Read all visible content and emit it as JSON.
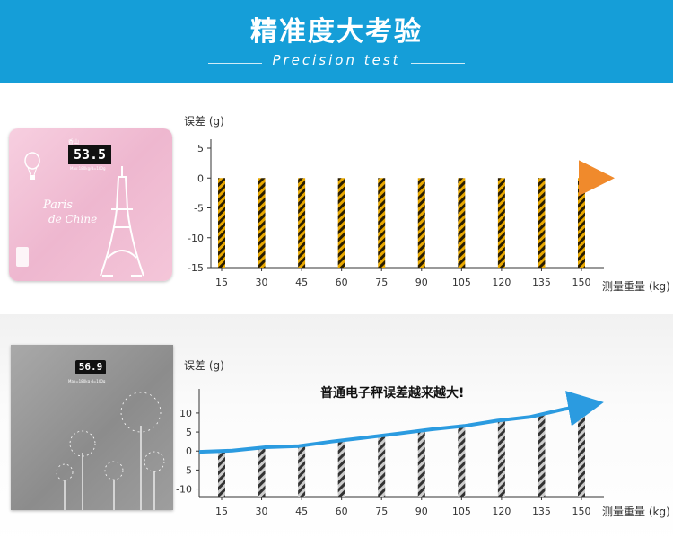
{
  "header": {
    "title": "精准度大考验",
    "subtitle": "Precision test",
    "background": "#159ed8"
  },
  "top_panel": {
    "product": {
      "display": "53.5",
      "brand": "香山",
      "spec": "Max:180kg/d=100g",
      "script_line1": "Paris",
      "script_line2": "de Chine",
      "color": "#f2c0d6"
    },
    "chart_data": {
      "type": "bar",
      "ylabel": "误差 (g)",
      "xlabel": "测量重量 (kg)",
      "ylim": [
        -15,
        5
      ],
      "yticks": [
        5,
        0,
        -5,
        -10,
        -15
      ],
      "categories": [
        "15",
        "30",
        "45",
        "60",
        "75",
        "90",
        "105",
        "120",
        "135",
        "150"
      ],
      "series": [
        {
          "values": [
            -15,
            -15,
            -15,
            -15,
            -15,
            -15,
            -15,
            -15,
            -15,
            -15
          ],
          "color": "#e8a800"
        }
      ],
      "trend": {
        "y": [
          0,
          0,
          0,
          0,
          0,
          0,
          0,
          0,
          0,
          0
        ],
        "color": "#ee3322"
      }
    }
  },
  "bottom_panel": {
    "product": {
      "display": "56.9",
      "spec": "Max=180kg  d=100g",
      "color": "#9a9a9a"
    },
    "chart_data": {
      "type": "bar",
      "ylabel": "误差 (g)",
      "xlabel": "测量重量 (kg)",
      "ylim": [
        -12,
        14
      ],
      "yticks": [
        10,
        5,
        0,
        -5,
        -10
      ],
      "categories": [
        "15",
        "30",
        "45",
        "60",
        "75",
        "90",
        "105",
        "120",
        "135",
        "150"
      ],
      "series": [
        {
          "values": [
            -12,
            -12,
            -12,
            -12,
            -12,
            -12,
            -12,
            -12,
            -12,
            -12
          ],
          "color": "#555555"
        }
      ],
      "trend": {
        "y": [
          -0.2,
          0.1,
          1.0,
          1.3,
          2.5,
          3.5,
          4.6,
          5.7,
          6.6,
          8.0,
          9.0,
          11.0,
          12.5
        ],
        "color": "#2b9be0"
      },
      "annotation": "普通电子秤误差越来越大!"
    }
  }
}
